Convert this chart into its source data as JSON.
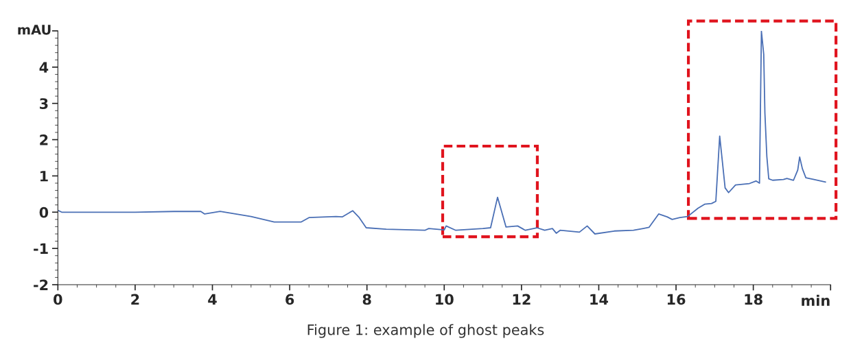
{
  "chart_data": {
    "type": "line",
    "xlabel": "min",
    "ylabel": "mAU",
    "annotations": [
      "Figure 1: example of ghost peaks"
    ],
    "xlim": [
      0,
      20
    ],
    "ylim": [
      -2,
      5
    ],
    "xticks": [
      0,
      2,
      4,
      6,
      8,
      10,
      12,
      14,
      16,
      18,
      {
        "value": 20,
        "label": null
      }
    ],
    "yticks": [
      -2,
      -1,
      0,
      1,
      2,
      3,
      4,
      {
        "value": 5,
        "label": null
      }
    ],
    "grid": false,
    "marker": "none",
    "line_style": "solid",
    "series": [
      {
        "color": "#4a6fb5",
        "x": [
          0,
          0.1,
          0.5,
          1.0,
          2.0,
          3.0,
          3.7,
          3.8,
          4.2,
          4.6,
          5.0,
          5.6,
          6.0,
          6.3,
          6.5,
          7.2,
          7.36,
          7.63,
          7.8,
          7.98,
          8.5,
          9.5,
          9.6,
          10.0,
          10.05,
          10.3,
          11.0,
          11.2,
          11.38,
          11.6,
          11.9,
          12.1,
          12.4,
          12.6,
          12.8,
          12.9,
          13.0,
          13.5,
          13.7,
          13.9,
          14.4,
          14.9,
          15.15,
          15.3,
          15.55,
          15.77,
          15.9,
          16.1,
          16.3,
          16.57,
          16.74,
          16.92,
          17.03,
          17.13,
          17.2,
          17.27,
          17.36,
          17.54,
          17.9,
          18.07,
          18.16,
          18.21,
          18.27,
          18.3,
          18.35,
          18.4,
          18.5,
          18.78,
          18.87,
          19.04,
          19.15,
          19.2,
          19.27,
          19.36,
          19.57,
          19.87
        ],
        "values": [
          0.05,
          0.0,
          0.0,
          0.0,
          0.0,
          0.02,
          0.02,
          -0.05,
          0.02,
          -0.05,
          -0.12,
          -0.27,
          -0.27,
          -0.27,
          -0.15,
          -0.12,
          -0.13,
          0.04,
          -0.15,
          -0.43,
          -0.47,
          -0.5,
          -0.45,
          -0.49,
          -0.38,
          -0.5,
          -0.45,
          -0.43,
          0.41,
          -0.41,
          -0.38,
          -0.5,
          -0.43,
          -0.5,
          -0.45,
          -0.58,
          -0.5,
          -0.55,
          -0.38,
          -0.6,
          -0.52,
          -0.5,
          -0.45,
          -0.42,
          -0.05,
          -0.13,
          -0.2,
          -0.15,
          -0.12,
          0.11,
          0.22,
          0.24,
          0.3,
          2.1,
          1.39,
          0.67,
          0.54,
          0.75,
          0.79,
          0.86,
          0.8,
          4.99,
          4.35,
          2.74,
          1.54,
          0.92,
          0.88,
          0.9,
          0.93,
          0.88,
          1.16,
          1.52,
          1.2,
          0.95,
          0.9,
          0.83
        ]
      }
    ]
  }
}
